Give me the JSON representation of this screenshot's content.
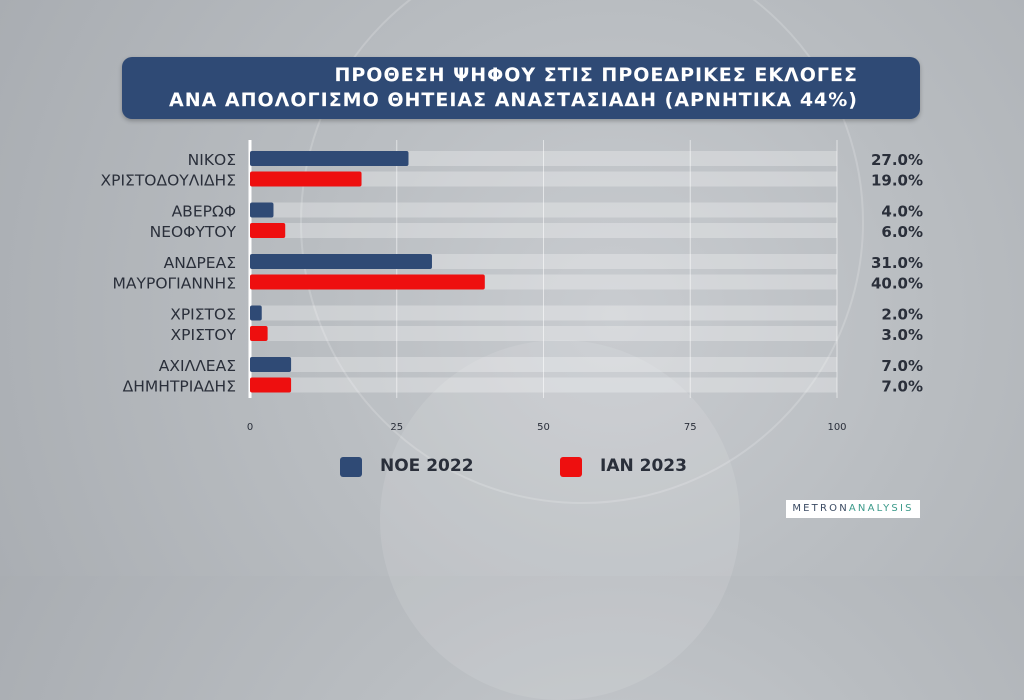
{
  "header": {
    "title_line1": "ΠΡΟΘΕΣΗ ΨΗΦΟΥ ΣΤΙΣ ΠΡΟΕΔΡΙΚΕΣ ΕΚΛΟΓΕΣ",
    "title_line2": "ΑΝΑ ΑΠΟΛΟΓΙΣΜΟ ΘΗΤΕΙΑΣ ΑΝΑΣΤΑΣΙΑΔΗ (ΑΡΝΗΤΙΚΑ 44%)"
  },
  "logo": {
    "part1": "METRON",
    "part2": "ANALYSIS"
  },
  "chart_data": {
    "type": "bar",
    "orientation": "horizontal",
    "title": "ΠΡΟΘΕΣΗ ΨΗΦΟΥ ΣΤΙΣ ΠΡΟΕΔΡΙΚΕΣ ΕΚΛΟΓΕΣ ΑΝΑ ΑΠΟΛΟΓΙΣΜΟ ΘΗΤΕΙΑΣ ΑΝΑΣΤΑΣΙΑΔΗ (ΑΡΝΗΤΙΚΑ 44%)",
    "categories": [
      [
        "ΝΙΚΟΣ",
        "ΧΡΙΣΤΟΔΟΥΛΙΔΗΣ"
      ],
      [
        "ΑΒΕΡΩΦ",
        "ΝΕΟΦΥΤΟΥ"
      ],
      [
        "ΑΝΔΡΕΑΣ",
        "ΜΑΥΡΟΓΙΑΝΝΗΣ"
      ],
      [
        "ΧΡΙΣΤΟΣ",
        "ΧΡΙΣΤΟΥ"
      ],
      [
        "ΑΧΙΛΛΕΑΣ",
        "ΔΗΜΗΤΡΙΑΔΗΣ"
      ]
    ],
    "series": [
      {
        "name": "ΝΟΕ 2022",
        "color": "#2f4a75",
        "values": [
          27.0,
          4.0,
          31.0,
          2.0,
          7.0
        ],
        "labels": [
          "27.0%",
          "4.0%",
          "31.0%",
          "2.0%",
          "7.0%"
        ]
      },
      {
        "name": "ΙΑΝ 2023",
        "color": "#ee0f0f",
        "values": [
          19.0,
          6.0,
          40.0,
          3.0,
          7.0
        ],
        "labels": [
          "19.0%",
          "6.0%",
          "40.0%",
          "3.0%",
          "7.0%"
        ]
      }
    ],
    "xlim": [
      0,
      100
    ],
    "xticks": [
      "0",
      "25",
      "50",
      "75",
      "100"
    ],
    "grid": true,
    "legend": "bottom"
  }
}
